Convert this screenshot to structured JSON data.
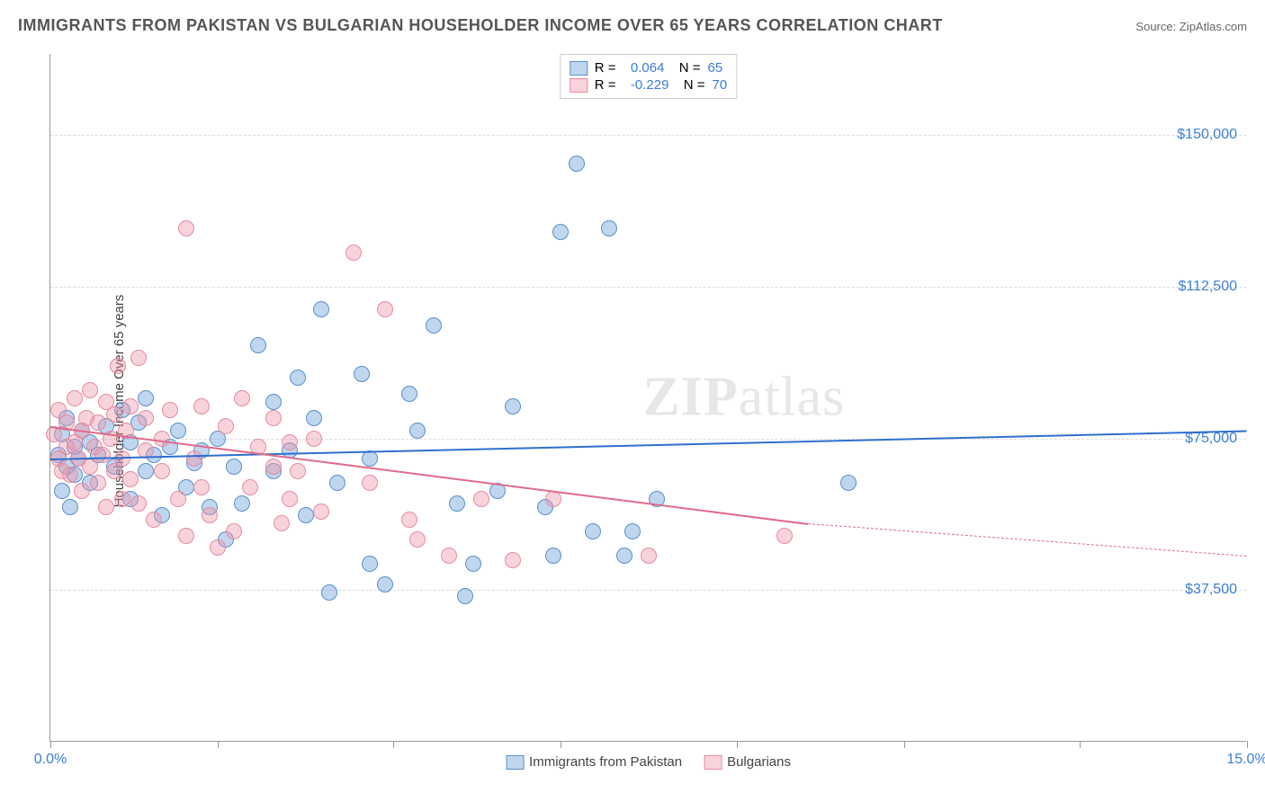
{
  "title": "IMMIGRANTS FROM PAKISTAN VS BULGARIAN HOUSEHOLDER INCOME OVER 65 YEARS CORRELATION CHART",
  "source_label": "Source:",
  "source_name": "ZipAtlas.com",
  "ylabel": "Householder Income Over 65 years",
  "watermark_bold": "ZIP",
  "watermark_rest": "atlas",
  "chart": {
    "type": "scatter",
    "xlim": [
      0,
      15
    ],
    "ylim": [
      0,
      170000
    ],
    "yticks": [
      37500,
      75000,
      112500,
      150000
    ],
    "ytick_labels": [
      "$37,500",
      "$75,000",
      "$112,500",
      "$150,000"
    ],
    "xtick_positions": [
      0,
      2.1,
      4.3,
      6.4,
      8.6,
      10.7,
      12.9,
      15
    ],
    "xaxis_left_label": "0.0%",
    "xaxis_right_label": "15.0%",
    "grid_color": "#dddddd",
    "axis_color": "#999999",
    "label_color": "#3b7dd8",
    "label_fontsize": 16,
    "background_color": "#ffffff",
    "marker_radius": 9,
    "series": [
      {
        "name": "Immigrants from Pakistan",
        "color_fill": "rgba(115,165,220,0.45)",
        "color_stroke": "#5a8fc9",
        "trend_color": "#2f6fd0",
        "R": "0.064",
        "N": "65",
        "trend": {
          "x0": 0,
          "y0": 70000,
          "x1": 15,
          "y1": 77000
        },
        "points": [
          [
            0.1,
            71000
          ],
          [
            0.15,
            62000
          ],
          [
            0.15,
            76000
          ],
          [
            0.2,
            68000
          ],
          [
            0.2,
            80000
          ],
          [
            0.25,
            58000
          ],
          [
            0.3,
            73000
          ],
          [
            0.3,
            66000
          ],
          [
            0.35,
            70000
          ],
          [
            0.4,
            77000
          ],
          [
            0.5,
            74000
          ],
          [
            0.5,
            64000
          ],
          [
            0.6,
            71000
          ],
          [
            0.7,
            78000
          ],
          [
            0.8,
            68000
          ],
          [
            0.9,
            82000
          ],
          [
            1.0,
            74000
          ],
          [
            1.0,
            60000
          ],
          [
            1.1,
            79000
          ],
          [
            1.2,
            85000
          ],
          [
            1.2,
            67000
          ],
          [
            1.3,
            71000
          ],
          [
            1.4,
            56000
          ],
          [
            1.5,
            73000
          ],
          [
            1.6,
            77000
          ],
          [
            1.7,
            63000
          ],
          [
            1.8,
            69000
          ],
          [
            1.9,
            72000
          ],
          [
            2.0,
            58000
          ],
          [
            2.1,
            75000
          ],
          [
            2.2,
            50000
          ],
          [
            2.3,
            68000
          ],
          [
            2.4,
            59000
          ],
          [
            2.6,
            98000
          ],
          [
            2.8,
            67000
          ],
          [
            2.8,
            84000
          ],
          [
            3.0,
            72000
          ],
          [
            3.1,
            90000
          ],
          [
            3.2,
            56000
          ],
          [
            3.3,
            80000
          ],
          [
            3.4,
            107000
          ],
          [
            3.5,
            37000
          ],
          [
            3.6,
            64000
          ],
          [
            3.9,
            91000
          ],
          [
            4.0,
            44000
          ],
          [
            4.0,
            70000
          ],
          [
            4.2,
            39000
          ],
          [
            4.5,
            86000
          ],
          [
            4.6,
            77000
          ],
          [
            4.8,
            103000
          ],
          [
            5.1,
            59000
          ],
          [
            5.2,
            36000
          ],
          [
            5.3,
            44000
          ],
          [
            5.6,
            62000
          ],
          [
            5.8,
            83000
          ],
          [
            6.2,
            58000
          ],
          [
            6.3,
            46000
          ],
          [
            6.4,
            126000
          ],
          [
            6.6,
            143000
          ],
          [
            6.8,
            52000
          ],
          [
            7.0,
            127000
          ],
          [
            7.2,
            46000
          ],
          [
            7.3,
            52000
          ],
          [
            7.6,
            60000
          ],
          [
            10.0,
            64000
          ]
        ]
      },
      {
        "name": "Bulgarians",
        "color_fill": "rgba(240,150,170,0.42)",
        "color_stroke": "#e58ba0",
        "trend_color": "#e06a8a",
        "R": "-0.229",
        "N": "70",
        "trend": {
          "x0": 0,
          "y0": 78000,
          "x1": 9.5,
          "y1": 54000
        },
        "trend_dash": {
          "x0": 9.5,
          "y0": 54000,
          "x1": 15,
          "y1": 46000
        },
        "points": [
          [
            0.05,
            76000
          ],
          [
            0.1,
            70000
          ],
          [
            0.1,
            82000
          ],
          [
            0.15,
            67000
          ],
          [
            0.2,
            73000
          ],
          [
            0.2,
            79000
          ],
          [
            0.25,
            66000
          ],
          [
            0.3,
            74000
          ],
          [
            0.3,
            85000
          ],
          [
            0.35,
            70000
          ],
          [
            0.4,
            62000
          ],
          [
            0.4,
            77000
          ],
          [
            0.45,
            80000
          ],
          [
            0.5,
            68000
          ],
          [
            0.5,
            87000
          ],
          [
            0.55,
            73000
          ],
          [
            0.6,
            64000
          ],
          [
            0.6,
            79000
          ],
          [
            0.65,
            71000
          ],
          [
            0.7,
            84000
          ],
          [
            0.7,
            58000
          ],
          [
            0.75,
            75000
          ],
          [
            0.8,
            67000
          ],
          [
            0.8,
            81000
          ],
          [
            0.85,
            93000
          ],
          [
            0.9,
            70000
          ],
          [
            0.9,
            60000
          ],
          [
            0.95,
            77000
          ],
          [
            1.0,
            65000
          ],
          [
            1.0,
            83000
          ],
          [
            1.1,
            95000
          ],
          [
            1.1,
            59000
          ],
          [
            1.2,
            72000
          ],
          [
            1.2,
            80000
          ],
          [
            1.3,
            55000
          ],
          [
            1.4,
            75000
          ],
          [
            1.4,
            67000
          ],
          [
            1.5,
            82000
          ],
          [
            1.6,
            60000
          ],
          [
            1.7,
            51000
          ],
          [
            1.7,
            127000
          ],
          [
            1.8,
            70000
          ],
          [
            1.9,
            63000
          ],
          [
            1.9,
            83000
          ],
          [
            2.0,
            56000
          ],
          [
            2.1,
            48000
          ],
          [
            2.2,
            78000
          ],
          [
            2.3,
            52000
          ],
          [
            2.4,
            85000
          ],
          [
            2.5,
            63000
          ],
          [
            2.6,
            73000
          ],
          [
            2.8,
            68000
          ],
          [
            2.8,
            80000
          ],
          [
            2.9,
            54000
          ],
          [
            3.0,
            74000
          ],
          [
            3.0,
            60000
          ],
          [
            3.1,
            67000
          ],
          [
            3.3,
            75000
          ],
          [
            3.4,
            57000
          ],
          [
            3.8,
            121000
          ],
          [
            4.0,
            64000
          ],
          [
            4.2,
            107000
          ],
          [
            4.5,
            55000
          ],
          [
            4.6,
            50000
          ],
          [
            5.0,
            46000
          ],
          [
            5.4,
            60000
          ],
          [
            5.8,
            45000
          ],
          [
            6.3,
            60000
          ],
          [
            7.5,
            46000
          ],
          [
            9.2,
            51000
          ]
        ]
      }
    ],
    "legend_bottom": [
      {
        "swatch_fill": "rgba(115,165,220,0.45)",
        "swatch_stroke": "#5a8fc9",
        "label": "Immigrants from Pakistan"
      },
      {
        "swatch_fill": "rgba(240,150,170,0.42)",
        "swatch_stroke": "#e58ba0",
        "label": "Bulgarians"
      }
    ]
  }
}
